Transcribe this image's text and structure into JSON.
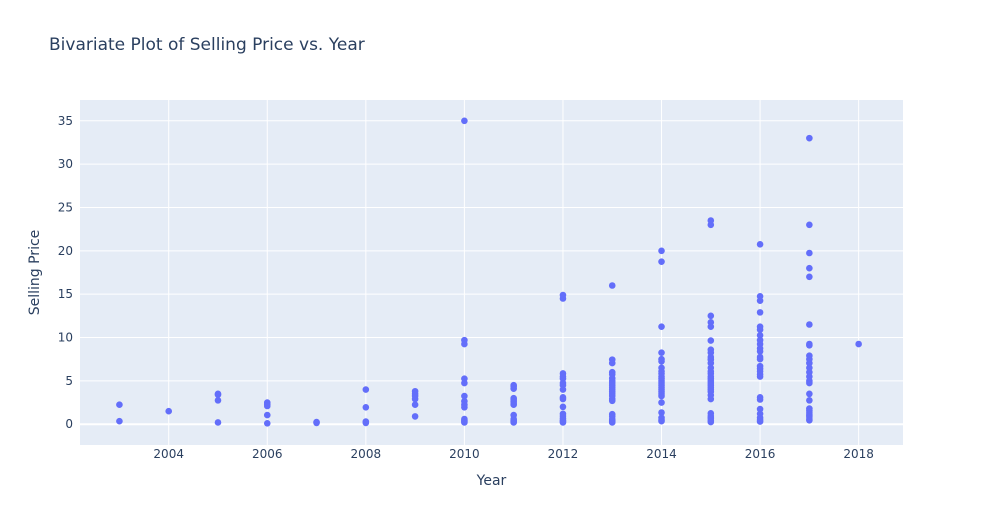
{
  "chart_data": {
    "type": "scatter",
    "title": "Bivariate Plot of Selling Price vs. Year",
    "xlabel": "Year",
    "ylabel": "Selling Price",
    "xlim": [
      2002.2,
      2018.9
    ],
    "ylim": [
      -2.4,
      37.4
    ],
    "xticks": [
      2004,
      2006,
      2008,
      2010,
      2012,
      2014,
      2016,
      2018
    ],
    "yticks": [
      0,
      5,
      10,
      15,
      20,
      25,
      30,
      35
    ],
    "grid": true,
    "legend": "none",
    "colors": {
      "marker": "#636efa",
      "plot_bg": "#e5ecf6",
      "grid": "#ffffff",
      "text": "#2a3f5f"
    },
    "points": [
      {
        "x": 2003,
        "y": 2.25
      },
      {
        "x": 2003,
        "y": 0.35
      },
      {
        "x": 2004,
        "y": 1.5
      },
      {
        "x": 2005,
        "y": 3.5
      },
      {
        "x": 2005,
        "y": 3.4
      },
      {
        "x": 2005,
        "y": 2.75
      },
      {
        "x": 2005,
        "y": 0.2
      },
      {
        "x": 2006,
        "y": 2.5
      },
      {
        "x": 2006,
        "y": 2.3
      },
      {
        "x": 2006,
        "y": 2.1
      },
      {
        "x": 2006,
        "y": 1.05
      },
      {
        "x": 2006,
        "y": 0.1
      },
      {
        "x": 2007,
        "y": 0.25
      },
      {
        "x": 2007,
        "y": 0.15
      },
      {
        "x": 2008,
        "y": 4.0
      },
      {
        "x": 2008,
        "y": 1.95
      },
      {
        "x": 2008,
        "y": 0.3
      },
      {
        "x": 2008,
        "y": 0.15
      },
      {
        "x": 2009,
        "y": 3.8
      },
      {
        "x": 2009,
        "y": 3.5
      },
      {
        "x": 2009,
        "y": 3.25
      },
      {
        "x": 2009,
        "y": 2.9
      },
      {
        "x": 2009,
        "y": 2.25
      },
      {
        "x": 2009,
        "y": 0.9
      },
      {
        "x": 2010,
        "y": 35.0
      },
      {
        "x": 2010,
        "y": 9.7
      },
      {
        "x": 2010,
        "y": 9.25
      },
      {
        "x": 2010,
        "y": 5.25
      },
      {
        "x": 2010,
        "y": 4.75
      },
      {
        "x": 2010,
        "y": 3.25
      },
      {
        "x": 2010,
        "y": 2.65
      },
      {
        "x": 2010,
        "y": 2.25
      },
      {
        "x": 2010,
        "y": 1.95
      },
      {
        "x": 2010,
        "y": 0.6
      },
      {
        "x": 2010,
        "y": 0.45
      },
      {
        "x": 2010,
        "y": 0.3
      },
      {
        "x": 2010,
        "y": 0.2
      },
      {
        "x": 2011,
        "y": 4.5
      },
      {
        "x": 2011,
        "y": 4.35
      },
      {
        "x": 2011,
        "y": 4.1
      },
      {
        "x": 2011,
        "y": 3.0
      },
      {
        "x": 2011,
        "y": 2.85
      },
      {
        "x": 2011,
        "y": 2.65
      },
      {
        "x": 2011,
        "y": 2.45
      },
      {
        "x": 2011,
        "y": 2.25
      },
      {
        "x": 2011,
        "y": 1.05
      },
      {
        "x": 2011,
        "y": 0.6
      },
      {
        "x": 2011,
        "y": 0.45
      },
      {
        "x": 2011,
        "y": 0.3
      },
      {
        "x": 2011,
        "y": 0.2
      },
      {
        "x": 2012,
        "y": 14.9
      },
      {
        "x": 2012,
        "y": 14.5
      },
      {
        "x": 2012,
        "y": 5.85
      },
      {
        "x": 2012,
        "y": 5.5
      },
      {
        "x": 2012,
        "y": 5.25
      },
      {
        "x": 2012,
        "y": 4.75
      },
      {
        "x": 2012,
        "y": 4.5
      },
      {
        "x": 2012,
        "y": 4.0
      },
      {
        "x": 2012,
        "y": 3.1
      },
      {
        "x": 2012,
        "y": 2.9
      },
      {
        "x": 2012,
        "y": 2.0
      },
      {
        "x": 2012,
        "y": 1.2
      },
      {
        "x": 2012,
        "y": 0.95
      },
      {
        "x": 2012,
        "y": 0.65
      },
      {
        "x": 2012,
        "y": 0.45
      },
      {
        "x": 2012,
        "y": 0.3
      },
      {
        "x": 2012,
        "y": 0.2
      },
      {
        "x": 2013,
        "y": 16.0
      },
      {
        "x": 2013,
        "y": 7.45
      },
      {
        "x": 2013,
        "y": 7.05
      },
      {
        "x": 2013,
        "y": 6.0
      },
      {
        "x": 2013,
        "y": 5.75
      },
      {
        "x": 2013,
        "y": 5.3
      },
      {
        "x": 2013,
        "y": 5.0
      },
      {
        "x": 2013,
        "y": 4.75
      },
      {
        "x": 2013,
        "y": 4.5
      },
      {
        "x": 2013,
        "y": 4.25
      },
      {
        "x": 2013,
        "y": 4.0
      },
      {
        "x": 2013,
        "y": 3.75
      },
      {
        "x": 2013,
        "y": 3.5
      },
      {
        "x": 2013,
        "y": 3.25
      },
      {
        "x": 2013,
        "y": 2.9
      },
      {
        "x": 2013,
        "y": 2.7
      },
      {
        "x": 2013,
        "y": 1.15
      },
      {
        "x": 2013,
        "y": 0.9
      },
      {
        "x": 2013,
        "y": 0.6
      },
      {
        "x": 2013,
        "y": 0.45
      },
      {
        "x": 2013,
        "y": 0.3
      },
      {
        "x": 2013,
        "y": 0.2
      },
      {
        "x": 2014,
        "y": 20.0
      },
      {
        "x": 2014,
        "y": 18.75
      },
      {
        "x": 2014,
        "y": 11.25
      },
      {
        "x": 2014,
        "y": 8.25
      },
      {
        "x": 2014,
        "y": 7.5
      },
      {
        "x": 2014,
        "y": 7.25
      },
      {
        "x": 2014,
        "y": 6.5
      },
      {
        "x": 2014,
        "y": 6.1
      },
      {
        "x": 2014,
        "y": 5.85
      },
      {
        "x": 2014,
        "y": 5.5
      },
      {
        "x": 2014,
        "y": 5.25
      },
      {
        "x": 2014,
        "y": 5.0
      },
      {
        "x": 2014,
        "y": 4.75
      },
      {
        "x": 2014,
        "y": 4.5
      },
      {
        "x": 2014,
        "y": 4.25
      },
      {
        "x": 2014,
        "y": 4.0
      },
      {
        "x": 2014,
        "y": 3.75
      },
      {
        "x": 2014,
        "y": 3.5
      },
      {
        "x": 2014,
        "y": 3.25
      },
      {
        "x": 2014,
        "y": 2.5
      },
      {
        "x": 2014,
        "y": 1.35
      },
      {
        "x": 2014,
        "y": 0.75
      },
      {
        "x": 2014,
        "y": 0.5
      },
      {
        "x": 2014,
        "y": 0.35
      },
      {
        "x": 2015,
        "y": 23.5
      },
      {
        "x": 2015,
        "y": 23.0
      },
      {
        "x": 2015,
        "y": 12.5
      },
      {
        "x": 2015,
        "y": 11.75
      },
      {
        "x": 2015,
        "y": 11.25
      },
      {
        "x": 2015,
        "y": 9.65
      },
      {
        "x": 2015,
        "y": 8.6
      },
      {
        "x": 2015,
        "y": 8.25
      },
      {
        "x": 2015,
        "y": 7.75
      },
      {
        "x": 2015,
        "y": 7.45
      },
      {
        "x": 2015,
        "y": 7.05
      },
      {
        "x": 2015,
        "y": 6.5
      },
      {
        "x": 2015,
        "y": 6.1
      },
      {
        "x": 2015,
        "y": 5.85
      },
      {
        "x": 2015,
        "y": 5.5
      },
      {
        "x": 2015,
        "y": 5.25
      },
      {
        "x": 2015,
        "y": 5.0
      },
      {
        "x": 2015,
        "y": 4.75
      },
      {
        "x": 2015,
        "y": 4.5
      },
      {
        "x": 2015,
        "y": 4.25
      },
      {
        "x": 2015,
        "y": 4.0
      },
      {
        "x": 2015,
        "y": 3.75
      },
      {
        "x": 2015,
        "y": 3.35
      },
      {
        "x": 2015,
        "y": 2.9
      },
      {
        "x": 2015,
        "y": 1.25
      },
      {
        "x": 2015,
        "y": 0.95
      },
      {
        "x": 2015,
        "y": 0.7
      },
      {
        "x": 2015,
        "y": 0.45
      },
      {
        "x": 2015,
        "y": 0.25
      },
      {
        "x": 2016,
        "y": 20.75
      },
      {
        "x": 2016,
        "y": 14.75
      },
      {
        "x": 2016,
        "y": 14.25
      },
      {
        "x": 2016,
        "y": 12.9
      },
      {
        "x": 2016,
        "y": 11.25
      },
      {
        "x": 2016,
        "y": 10.9
      },
      {
        "x": 2016,
        "y": 10.25
      },
      {
        "x": 2016,
        "y": 9.7
      },
      {
        "x": 2016,
        "y": 9.25
      },
      {
        "x": 2016,
        "y": 8.75
      },
      {
        "x": 2016,
        "y": 8.4
      },
      {
        "x": 2016,
        "y": 7.75
      },
      {
        "x": 2016,
        "y": 7.5
      },
      {
        "x": 2016,
        "y": 6.7
      },
      {
        "x": 2016,
        "y": 6.4
      },
      {
        "x": 2016,
        "y": 6.1
      },
      {
        "x": 2016,
        "y": 5.75
      },
      {
        "x": 2016,
        "y": 5.5
      },
      {
        "x": 2016,
        "y": 3.1
      },
      {
        "x": 2016,
        "y": 2.85
      },
      {
        "x": 2016,
        "y": 1.75
      },
      {
        "x": 2016,
        "y": 1.2
      },
      {
        "x": 2016,
        "y": 0.75
      },
      {
        "x": 2016,
        "y": 0.5
      },
      {
        "x": 2016,
        "y": 0.3
      },
      {
        "x": 2017,
        "y": 33.0
      },
      {
        "x": 2017,
        "y": 23.0
      },
      {
        "x": 2017,
        "y": 19.75
      },
      {
        "x": 2017,
        "y": 18.0
      },
      {
        "x": 2017,
        "y": 17.0
      },
      {
        "x": 2017,
        "y": 11.5
      },
      {
        "x": 2017,
        "y": 9.25
      },
      {
        "x": 2017,
        "y": 9.1
      },
      {
        "x": 2017,
        "y": 7.9
      },
      {
        "x": 2017,
        "y": 7.5
      },
      {
        "x": 2017,
        "y": 7.05
      },
      {
        "x": 2017,
        "y": 6.5
      },
      {
        "x": 2017,
        "y": 6.0
      },
      {
        "x": 2017,
        "y": 5.5
      },
      {
        "x": 2017,
        "y": 5.0
      },
      {
        "x": 2017,
        "y": 4.75
      },
      {
        "x": 2017,
        "y": 3.5
      },
      {
        "x": 2017,
        "y": 2.75
      },
      {
        "x": 2017,
        "y": 1.8
      },
      {
        "x": 2017,
        "y": 1.55
      },
      {
        "x": 2017,
        "y": 1.3
      },
      {
        "x": 2017,
        "y": 1.05
      },
      {
        "x": 2017,
        "y": 0.85
      },
      {
        "x": 2017,
        "y": 0.6
      },
      {
        "x": 2017,
        "y": 0.45
      },
      {
        "x": 2018,
        "y": 9.25
      }
    ]
  }
}
